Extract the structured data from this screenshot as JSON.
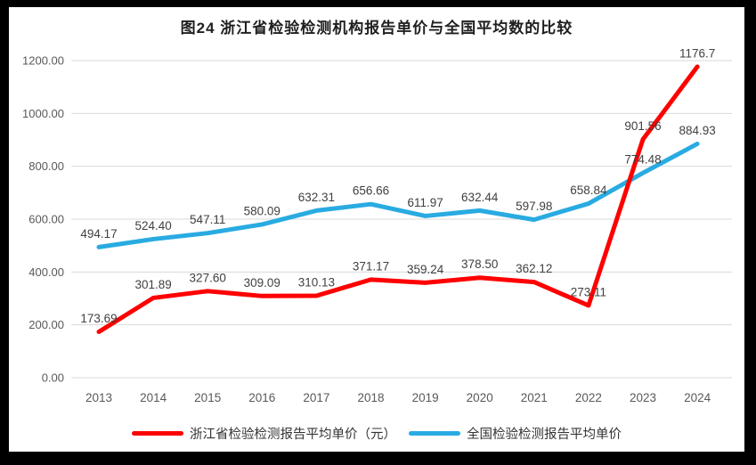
{
  "frame": {
    "border_color": "#000000",
    "background": "#ffffff"
  },
  "title": "图24  浙江省检验检测机构报告单价与全国平均数的比较",
  "chart_data": {
    "type": "line",
    "categories": [
      "2013",
      "2014",
      "2015",
      "2016",
      "2017",
      "2018",
      "2019",
      "2020",
      "2021",
      "2022",
      "2023",
      "2024"
    ],
    "series": [
      {
        "name": "浙江省检验检测报告平均单价（元）",
        "color": "#FE0000",
        "values": [
          173.69,
          301.89,
          327.6,
          309.09,
          310.13,
          371.17,
          359.24,
          378.5,
          362.12,
          273.11,
          901.56,
          1176.7
        ],
        "labels": [
          "173.69",
          "301.89",
          "327.60",
          "309.09",
          "310.13",
          "371.17",
          "359.24",
          "378.50",
          "362.12",
          "273.11",
          "901.56",
          "1176.7"
        ]
      },
      {
        "name": "全国检验检测报告平均单价",
        "color": "#29ABE2",
        "values": [
          494.17,
          524.4,
          547.11,
          580.09,
          632.31,
          656.66,
          611.97,
          632.44,
          597.98,
          658.84,
          774.48,
          884.93
        ],
        "labels": [
          "494.17",
          "524.40",
          "547.11",
          "580.09",
          "632.31",
          "656.66",
          "611.97",
          "632.44",
          "597.98",
          "658.84",
          "774.48",
          "884.93"
        ]
      }
    ],
    "ylim": [
      0,
      1200
    ],
    "ytick_labels": [
      "0.00",
      "200.00",
      "400.00",
      "600.00",
      "800.00",
      "1000.00",
      "1200.00"
    ],
    "grid": true,
    "legend_position": "bottom",
    "grid_color": "#D9D9D9",
    "axis_text_color": "#595959",
    "label_text_color": "#404040"
  }
}
